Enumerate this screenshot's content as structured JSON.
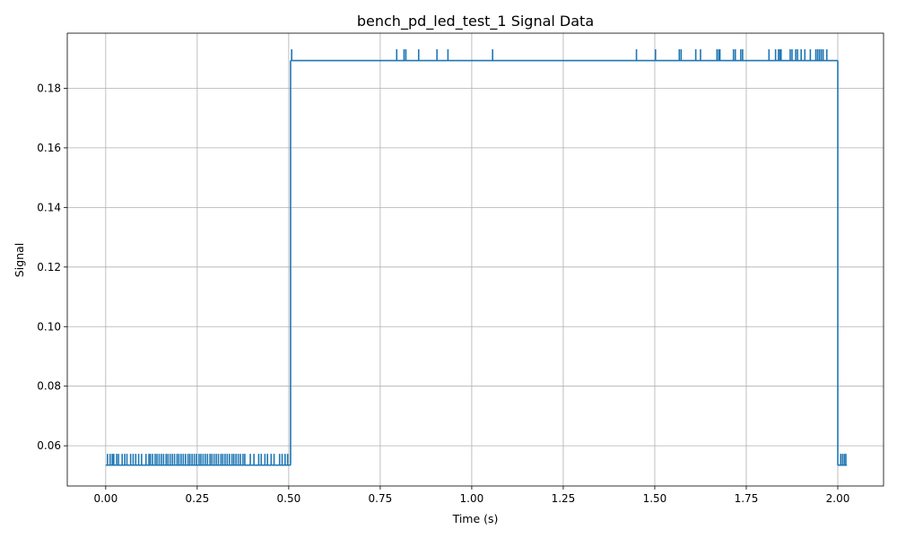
{
  "chart_data": {
    "type": "line",
    "title": "bench_pd_led_test_1 Signal Data",
    "xlabel": "Time (s)",
    "ylabel": "Signal",
    "xlim": [
      -0.105,
      2.125
    ],
    "ylim": [
      0.0465,
      0.1985
    ],
    "xticks": [
      0.0,
      0.25,
      0.5,
      0.75,
      1.0,
      1.25,
      1.5,
      1.75,
      2.0
    ],
    "xtick_labels": [
      "0.00",
      "0.25",
      "0.50",
      "0.75",
      "1.00",
      "1.25",
      "1.50",
      "1.75",
      "2.00"
    ],
    "yticks": [
      0.06,
      0.08,
      0.1,
      0.12,
      0.14,
      0.16,
      0.18
    ],
    "ytick_labels": [
      "0.06",
      "0.08",
      "0.10",
      "0.12",
      "0.14",
      "0.16",
      "0.18"
    ],
    "grid": true,
    "line_color": "#1f77b4",
    "series": [
      {
        "baseline_segments": [
          {
            "x_start": 0.0,
            "x_end": 0.505,
            "y": 0.0535
          },
          {
            "x_start": 0.505,
            "x_end": 2.0,
            "y": 0.1893
          },
          {
            "x_start": 2.0,
            "x_end": 2.025,
            "y": 0.0535
          }
        ],
        "steps": [
          {
            "x": 0.505,
            "y_from": 0.0535,
            "y_to": 0.1893
          },
          {
            "x": 2.0,
            "y_from": 0.1893,
            "y_to": 0.0535
          }
        ],
        "low_spike_level": 0.0573,
        "high_spike_level": 0.1931,
        "spikes_x": [
          0.005,
          0.012,
          0.018,
          0.022,
          0.03,
          0.035,
          0.045,
          0.052,
          0.058,
          0.068,
          0.075,
          0.082,
          0.09,
          0.098,
          0.11,
          0.118,
          0.122,
          0.128,
          0.135,
          0.14,
          0.146,
          0.152,
          0.158,
          0.165,
          0.17,
          0.176,
          0.182,
          0.188,
          0.195,
          0.2,
          0.206,
          0.212,
          0.218,
          0.225,
          0.23,
          0.236,
          0.242,
          0.248,
          0.255,
          0.26,
          0.266,
          0.272,
          0.278,
          0.285,
          0.29,
          0.296,
          0.302,
          0.308,
          0.315,
          0.32,
          0.326,
          0.332,
          0.338,
          0.345,
          0.35,
          0.356,
          0.362,
          0.368,
          0.375,
          0.38,
          0.395,
          0.405,
          0.418,
          0.425,
          0.435,
          0.442,
          0.452,
          0.46,
          0.475,
          0.482,
          0.49,
          0.497,
          0.508,
          0.795,
          0.815,
          0.82,
          0.855,
          0.905,
          0.935,
          1.057,
          1.45,
          1.502,
          1.567,
          1.572,
          1.612,
          1.625,
          1.67,
          1.675,
          1.678,
          1.715,
          1.72,
          1.735,
          1.74,
          1.812,
          1.83,
          1.838,
          1.842,
          1.845,
          1.87,
          1.875,
          1.885,
          1.89,
          1.9,
          1.91,
          1.925,
          1.94,
          1.945,
          1.95,
          1.955,
          1.96,
          1.97,
          2.008,
          2.013,
          2.018,
          2.022
        ]
      }
    ]
  }
}
